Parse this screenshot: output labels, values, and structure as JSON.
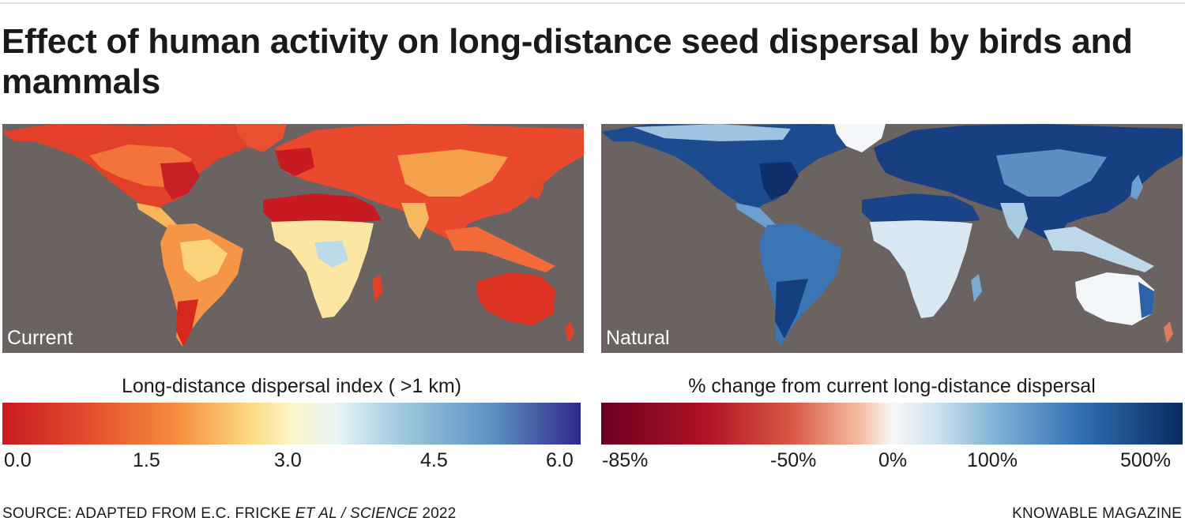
{
  "title": "Effect of human activity on long-distance seed dispersal by birds and mammals",
  "maps": {
    "current": {
      "label": "Current",
      "legend_title": "Long-distance dispersal index ( >1 km)",
      "ticks": [
        "0.0",
        "1.5",
        "3.0",
        "4.5",
        "6.0"
      ],
      "ocean_color": "#6b6361",
      "scale_colors": [
        "#c81a21",
        "#f58d3e",
        "#fbf6c6",
        "#a9d0e2",
        "#2e2a8a"
      ]
    },
    "natural": {
      "label": "Natural",
      "legend_title": "% change from current long-distance dispersal",
      "ticks": [
        "-85%",
        "-50%",
        "0%",
        "100%",
        "500%"
      ],
      "ocean_color": "#6b6361",
      "scale_colors": [
        "#6a0020",
        "#d95a47",
        "#f7f7f7",
        "#7fb1d6",
        "#0b2a62"
      ]
    }
  },
  "footer": {
    "source_prefix": "SOURCE: ADAPTED FROM E.C. FRICKE ",
    "source_italic": "ET AL / SCIENCE",
    "source_suffix": " 2022",
    "credit": "KNOWABLE MAGAZINE"
  }
}
